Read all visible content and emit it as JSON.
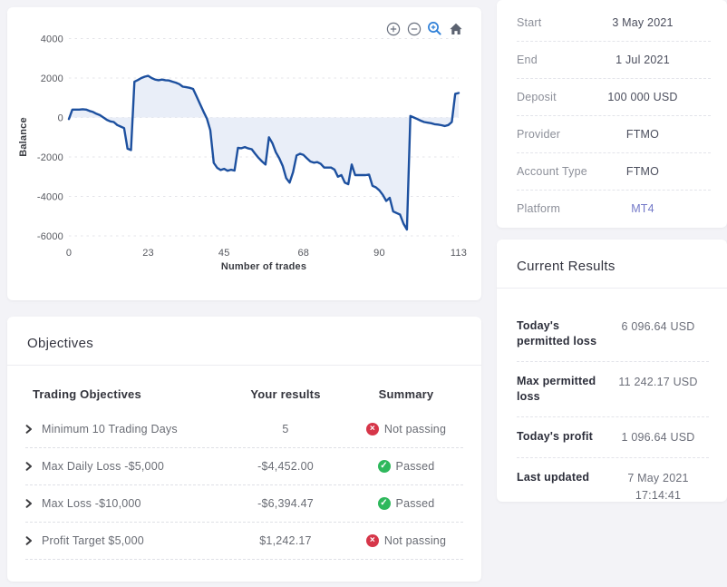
{
  "colors": {
    "line": "#1d509f",
    "area_fill": "#e9eef8",
    "pass_green": "#2eb85c",
    "fail_red": "#d63649",
    "platform_accent": "#7379c8",
    "toolbar_active": "#2f80d8"
  },
  "chart": {
    "toolbar": {
      "zoom_in": "zoom-in",
      "zoom_out": "zoom-out",
      "selection_zoom": "selection-zoom",
      "reset": "reset-home"
    },
    "chart_data": {
      "type": "area",
      "xlabel": "Number of trades",
      "ylabel": "Balance",
      "xticks": [
        0,
        23,
        45,
        68,
        90,
        113
      ],
      "yticks": [
        4000,
        2000,
        0,
        -2000,
        -4000,
        -6000
      ],
      "xlim": [
        0,
        113
      ],
      "ylim": [
        -6500,
        4500
      ],
      "grid": "horizontal-dashed",
      "legend": "none",
      "line_color": "#1d509f",
      "fill_color": "#e9eef8",
      "fill_baseline": 0,
      "points": [
        [
          0,
          -80
        ],
        [
          1,
          400
        ],
        [
          2,
          400
        ],
        [
          3,
          400
        ],
        [
          4,
          420
        ],
        [
          5,
          400
        ],
        [
          6,
          330
        ],
        [
          7,
          280
        ],
        [
          8,
          190
        ],
        [
          9,
          120
        ],
        [
          10,
          0
        ],
        [
          11,
          -120
        ],
        [
          12,
          -200
        ],
        [
          13,
          -230
        ],
        [
          14,
          -380
        ],
        [
          15,
          -460
        ],
        [
          16,
          -540
        ],
        [
          17,
          -1580
        ],
        [
          18,
          -1650
        ],
        [
          19,
          1810
        ],
        [
          20,
          1900
        ],
        [
          21,
          2000
        ],
        [
          22,
          2070
        ],
        [
          23,
          2110
        ],
        [
          24,
          2000
        ],
        [
          25,
          1920
        ],
        [
          26,
          1890
        ],
        [
          27,
          1920
        ],
        [
          28,
          1890
        ],
        [
          29,
          1875
        ],
        [
          30,
          1815
        ],
        [
          31,
          1765
        ],
        [
          32,
          1690
        ],
        [
          33,
          1565
        ],
        [
          34,
          1535
        ],
        [
          35,
          1505
        ],
        [
          36,
          1450
        ],
        [
          37,
          1075
        ],
        [
          38,
          690
        ],
        [
          39,
          310
        ],
        [
          40,
          -50
        ],
        [
          41,
          -650
        ],
        [
          42,
          -2300
        ],
        [
          43,
          -2550
        ],
        [
          44,
          -2660
        ],
        [
          45,
          -2600
        ],
        [
          46,
          -2700
        ],
        [
          47,
          -2650
        ],
        [
          48,
          -2690
        ],
        [
          49,
          -1540
        ],
        [
          50,
          -1560
        ],
        [
          51,
          -1500
        ],
        [
          52,
          -1570
        ],
        [
          53,
          -1610
        ],
        [
          54,
          -1840
        ],
        [
          55,
          -2050
        ],
        [
          56,
          -2230
        ],
        [
          57,
          -2380
        ],
        [
          58,
          -1000
        ],
        [
          59,
          -1300
        ],
        [
          60,
          -1760
        ],
        [
          61,
          -2070
        ],
        [
          62,
          -2460
        ],
        [
          63,
          -3070
        ],
        [
          64,
          -3300
        ],
        [
          65,
          -2770
        ],
        [
          66,
          -1920
        ],
        [
          67,
          -1840
        ],
        [
          68,
          -1900
        ],
        [
          69,
          -2070
        ],
        [
          70,
          -2230
        ],
        [
          71,
          -2290
        ],
        [
          72,
          -2260
        ],
        [
          73,
          -2350
        ],
        [
          74,
          -2540
        ],
        [
          75,
          -2540
        ],
        [
          76,
          -2540
        ],
        [
          77,
          -2640
        ],
        [
          78,
          -3000
        ],
        [
          79,
          -2920
        ],
        [
          80,
          -3300
        ],
        [
          81,
          -3380
        ],
        [
          82,
          -2380
        ],
        [
          83,
          -2920
        ],
        [
          84,
          -2920
        ],
        [
          85,
          -2920
        ],
        [
          86,
          -2920
        ],
        [
          87,
          -2890
        ],
        [
          88,
          -3460
        ],
        [
          89,
          -3540
        ],
        [
          90,
          -3690
        ],
        [
          91,
          -3920
        ],
        [
          92,
          -4230
        ],
        [
          93,
          -4070
        ],
        [
          94,
          -4760
        ],
        [
          95,
          -4840
        ],
        [
          96,
          -4920
        ],
        [
          97,
          -5380
        ],
        [
          98,
          -5680
        ],
        [
          99,
          80
        ],
        [
          100,
          0
        ],
        [
          101,
          -80
        ],
        [
          102,
          -160
        ],
        [
          103,
          -230
        ],
        [
          104,
          -260
        ],
        [
          105,
          -290
        ],
        [
          106,
          -340
        ],
        [
          107,
          -360
        ],
        [
          108,
          -390
        ],
        [
          109,
          -430
        ],
        [
          110,
          -380
        ],
        [
          111,
          -230
        ],
        [
          112,
          1200
        ],
        [
          113,
          1242
        ]
      ]
    }
  },
  "details": {
    "rows": [
      {
        "label": "Start",
        "value": "3 May 2021"
      },
      {
        "label": "End",
        "value": "1 Jul 2021"
      },
      {
        "label": "Deposit",
        "value": "100 000 USD"
      },
      {
        "label": "Provider",
        "value": "FTMO"
      },
      {
        "label": "Account Type",
        "value": "FTMO"
      },
      {
        "label": "Platform",
        "value": "MT4"
      }
    ]
  },
  "current_results": {
    "title": "Current Results",
    "rows": [
      {
        "label": "Today's permitted loss",
        "value": "6 096.64 USD"
      },
      {
        "label": "Max permitted loss",
        "value": "11 242.17 USD"
      },
      {
        "label": "Today's profit",
        "value": "1 096.64 USD"
      },
      {
        "label": "Last updated",
        "value": "7 May 2021",
        "value2": "17:14:41"
      }
    ]
  },
  "objectives": {
    "title": "Objectives",
    "columns": [
      "Trading Objectives",
      "Your results",
      "Summary"
    ],
    "rows": [
      {
        "objective": "Minimum 10 Trading Days",
        "result": "5",
        "status": "Not passing",
        "passed": false
      },
      {
        "objective": "Max Daily Loss -$5,000",
        "result": "-$4,452.00",
        "status": "Passed",
        "passed": true
      },
      {
        "objective": "Max Loss -$10,000",
        "result": "-$6,394.47",
        "status": "Passed",
        "passed": true
      },
      {
        "objective": "Profit Target $5,000",
        "result": "$1,242.17",
        "status": "Not passing",
        "passed": false
      }
    ]
  }
}
